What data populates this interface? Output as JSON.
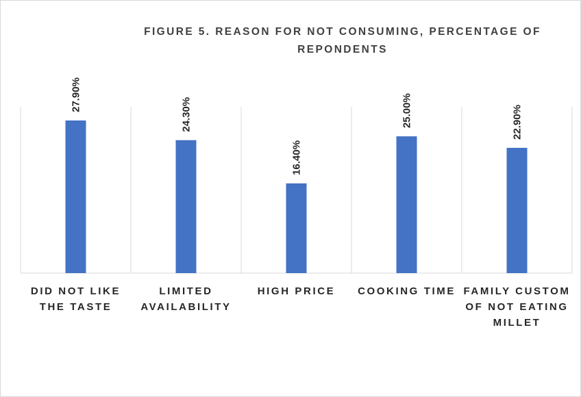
{
  "chart_data": {
    "type": "bar",
    "title": "FIGURE 5. REASON FOR NOT CONSUMING, PERCENTAGE OF REPONDENTS",
    "categories": [
      "DID NOT LIKE THE TASTE",
      "LIMITED AVAILABILITY",
      "HIGH PRICE",
      "COOKING TIME",
      "FAMILY CUSTOM OF NOT EATING MILLET"
    ],
    "values": [
      27.9,
      24.3,
      16.4,
      25.0,
      22.9
    ],
    "data_labels": [
      "27.90%",
      "24.30%",
      "16.40%",
      "25.00%",
      "22.90%"
    ],
    "unit": "%",
    "ylim": [
      0,
      30
    ],
    "bar_color": "#4472c4",
    "gridlines": "vertical category separators",
    "legend": "none"
  }
}
